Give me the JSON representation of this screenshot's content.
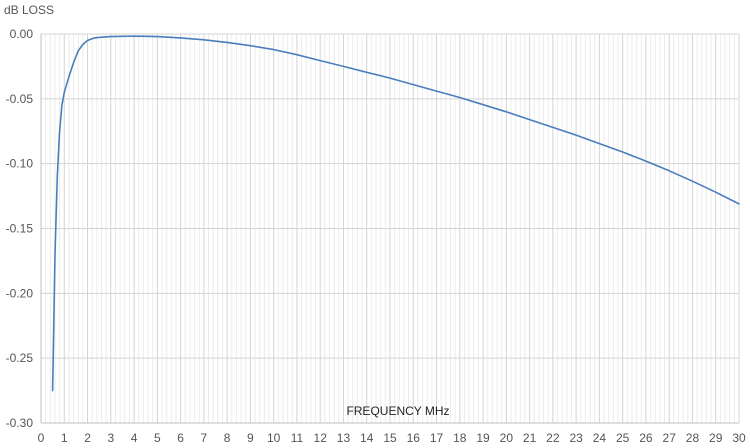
{
  "chart_data": {
    "type": "line",
    "ylabel": "dB LOSS",
    "xlabel": "FREQUENCY MHz",
    "xlim": [
      0,
      30
    ],
    "ylim": [
      -0.3,
      0.0
    ],
    "x_ticks": [
      "0",
      "1",
      "2",
      "3",
      "4",
      "5",
      "6",
      "7",
      "8",
      "9",
      "10",
      "11",
      "12",
      "13",
      "14",
      "15",
      "16",
      "17",
      "18",
      "19",
      "20",
      "21",
      "22",
      "23",
      "24",
      "25",
      "26",
      "27",
      "28",
      "29",
      "30"
    ],
    "y_ticks": [
      "0.00",
      "-0.05",
      "-0.10",
      "-0.15",
      "-0.20",
      "-0.25",
      "-0.30"
    ],
    "y_tick_values": [
      0.0,
      -0.05,
      -0.1,
      -0.15,
      -0.2,
      -0.25,
      -0.3
    ],
    "grid": true,
    "series": [
      {
        "color": "#4a7ebb",
        "x": [
          0.5,
          0.6,
          0.7,
          0.8,
          0.9,
          1.0,
          1.2,
          1.4,
          1.6,
          1.8,
          2.0,
          2.3,
          2.6,
          3.0,
          3.5,
          4.0,
          4.5,
          5.0,
          6.0,
          7.0,
          8.0,
          9.0,
          10.0,
          11.0,
          12.0,
          13.0,
          14.0,
          15.0,
          16.0,
          17.0,
          18.0,
          19.0,
          20.0,
          21.0,
          22.0,
          23.0,
          24.0,
          25.0,
          26.0,
          27.0,
          28.0,
          29.0,
          30.0
        ],
        "y": [
          -0.275,
          -0.17,
          -0.11,
          -0.075,
          -0.055,
          -0.045,
          -0.033,
          -0.022,
          -0.013,
          -0.008,
          -0.005,
          -0.003,
          -0.0025,
          -0.002,
          -0.0018,
          -0.0017,
          -0.0018,
          -0.002,
          -0.003,
          -0.0045,
          -0.0065,
          -0.009,
          -0.012,
          -0.016,
          -0.0205,
          -0.025,
          -0.0295,
          -0.034,
          -0.039,
          -0.044,
          -0.049,
          -0.0545,
          -0.06,
          -0.066,
          -0.072,
          -0.078,
          -0.0845,
          -0.091,
          -0.098,
          -0.1055,
          -0.1135,
          -0.122,
          -0.131
        ]
      }
    ]
  }
}
